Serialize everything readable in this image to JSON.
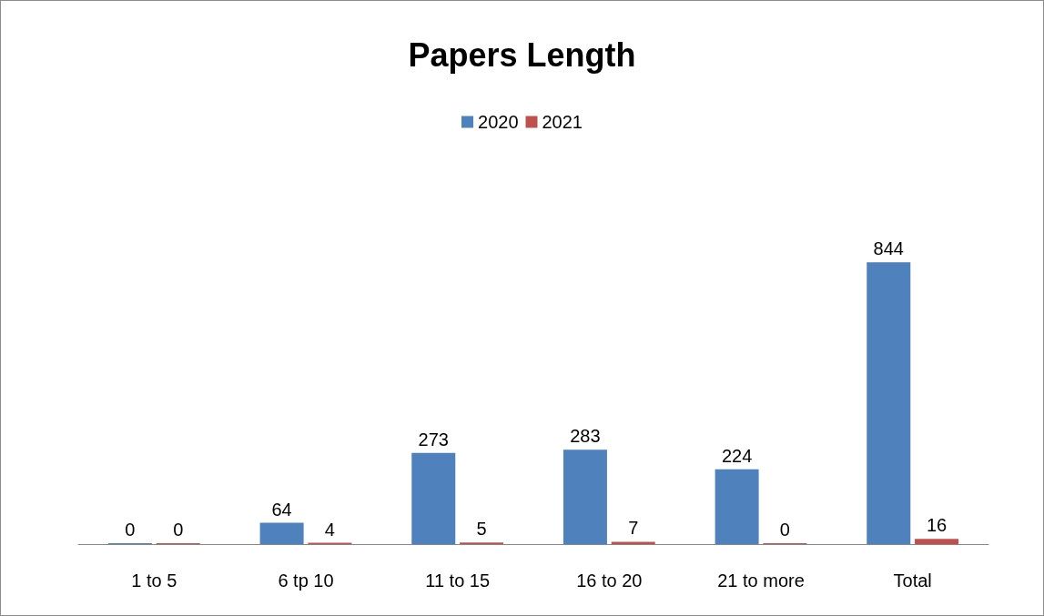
{
  "chart_data": {
    "type": "bar",
    "title": "Papers Length",
    "categories": [
      "1 to 5",
      "6 tp 10",
      "11 to 15",
      "16 to 20",
      "21 to more",
      "Total"
    ],
    "series": [
      {
        "name": "2020",
        "color": "#4f81bd",
        "values": [
          0,
          64,
          273,
          283,
          224,
          844
        ]
      },
      {
        "name": "2021",
        "color": "#c0504d",
        "values": [
          0,
          4,
          5,
          7,
          0,
          16
        ]
      }
    ],
    "data_labels": true,
    "legend": "top",
    "tick_labels": "x"
  }
}
